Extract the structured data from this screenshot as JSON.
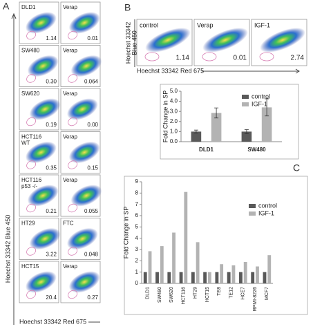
{
  "panel_a": {
    "letter": "A",
    "y_axis_label": "Hoechst 33342 Blue 450",
    "x_axis_label": "Hoechst 33342 Red 675",
    "rows": [
      [
        {
          "label": [
            "DLD1"
          ],
          "value": "1.14"
        },
        {
          "label": [
            "Verap"
          ],
          "value": "0.01"
        }
      ],
      [
        {
          "label": [
            "SW480"
          ],
          "value": "0.30"
        },
        {
          "label": [
            "Verap"
          ],
          "value": "0.064"
        }
      ],
      [
        {
          "label": [
            "SW620"
          ],
          "value": "0.19"
        },
        {
          "label": [
            "Verap"
          ],
          "value": "0.00"
        }
      ],
      [
        {
          "label": [
            "HCT116",
            "WT"
          ],
          "value": "0.35"
        },
        {
          "label": [
            "Verap"
          ],
          "value": "0.15"
        }
      ],
      [
        {
          "label": [
            "HCT116",
            "p53 -/-"
          ],
          "value": "0.21"
        },
        {
          "label": [
            "Verap"
          ],
          "value": "0.055"
        }
      ],
      [
        {
          "label": [
            "HT29"
          ],
          "value": "3.22"
        },
        {
          "label": [
            "FTC"
          ],
          "value": "0.048"
        }
      ],
      [
        {
          "label": [
            "HCT15"
          ],
          "value": "20.4"
        },
        {
          "label": [
            "Verap"
          ],
          "value": "0.27"
        }
      ]
    ]
  },
  "panel_b": {
    "letter": "B",
    "y_axis_label": [
      "Hoechst 33342",
      "Blue 450"
    ],
    "x_axis_label": "Hoechst 33342 Red 675",
    "plots": [
      {
        "label": "control",
        "value": "1.14"
      },
      {
        "label": "Verap",
        "value": "0.01"
      },
      {
        "label": "IGF-1",
        "value": "2.74"
      }
    ]
  },
  "panel_c": {
    "letter": "C"
  },
  "chart_data": [
    {
      "type": "bar",
      "y_label": "Fold Change in SP",
      "categories": [
        "DLD1",
        "SW480"
      ],
      "series": [
        {
          "name": "control",
          "color": "#595959",
          "values": [
            1.0,
            1.0
          ],
          "errors": [
            0.15,
            0.2
          ]
        },
        {
          "name": "IGF-1",
          "color": "#b3b3b3",
          "values": [
            2.85,
            3.4
          ],
          "errors": [
            0.5,
            0.85
          ]
        }
      ],
      "ylim": [
        0,
        5
      ],
      "yticks": [
        {
          "value": 0,
          "label": "0.0"
        },
        {
          "value": 1,
          "label": "1.0"
        },
        {
          "value": 2,
          "label": "2.0"
        },
        {
          "value": 3,
          "label": "3.0"
        },
        {
          "value": 4,
          "label": "4.0"
        },
        {
          "value": 5,
          "label": "5.0"
        }
      ]
    },
    {
      "type": "bar",
      "y_label": "Fold Change in SP",
      "categories": [
        "DLD1",
        "SW480",
        "SW620",
        "HCT116",
        "HT29",
        "HCT15",
        "TE8",
        "TE12",
        "HCE7",
        "RPMI-8226",
        "MCF7"
      ],
      "series": [
        {
          "name": "control",
          "color": "#595959",
          "values": [
            1,
            1,
            1,
            1,
            1,
            1,
            1,
            1,
            1,
            1,
            1
          ]
        },
        {
          "name": "IGF-1",
          "color": "#b3b3b3",
          "values": [
            2.85,
            3.3,
            4.5,
            8.1,
            3.65,
            1.0,
            1.7,
            1.6,
            1.9,
            1.5,
            2.5
          ]
        }
      ],
      "ylim": [
        0,
        9
      ],
      "yticks": [
        0,
        1,
        2,
        3,
        4,
        5,
        6,
        7,
        8,
        9
      ]
    }
  ]
}
